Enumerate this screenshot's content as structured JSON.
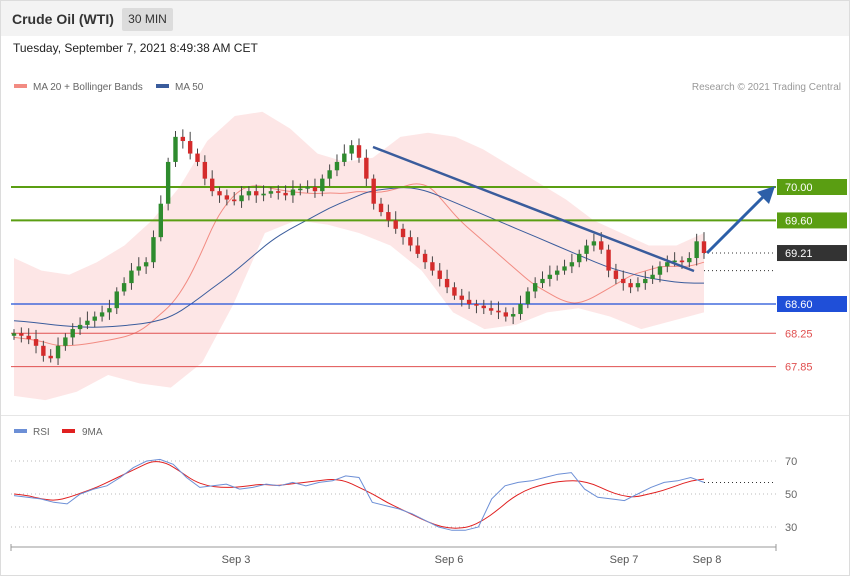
{
  "header": {
    "title": "Crude Oil (WTI)",
    "timeframe": "30 MIN",
    "timestamp": "Tuesday, September 7, 2021 8:49:38 AM CET"
  },
  "legend": {
    "ma20_label": "MA 20 + Bollinger Bands",
    "ma50_label": "MA 50",
    "ma20_color": "#f28b82",
    "ma50_color": "#3a5c9c",
    "credit": "Research © 2021 Trading Central"
  },
  "rsi_legend": {
    "rsi_label": "RSI",
    "ma_label": "9MA",
    "rsi_color": "#6c8fd6",
    "ma_color": "#e02020"
  },
  "chart_data": [
    {
      "type": "candlestick",
      "title": "Crude Oil (WTI)",
      "timeframe": "30 MIN",
      "x_ticks": [
        "Sep 3",
        "Sep 6",
        "Sep 7",
        "Sep 8"
      ],
      "ylim": [
        67.35,
        70.95
      ],
      "levels": [
        {
          "value": 70.0,
          "label": "70.00",
          "kind": "resistance",
          "color": "#5a9e12"
        },
        {
          "value": 69.6,
          "label": "69.60",
          "kind": "resistance",
          "color": "#5a9e12"
        },
        {
          "value": 69.21,
          "label": "69.21",
          "kind": "last",
          "color": "#333333"
        },
        {
          "value": 68.6,
          "label": "68.60",
          "kind": "support",
          "color": "#1f4fd8"
        },
        {
          "value": 68.25,
          "label": "68.25",
          "kind": "support",
          "color": "#e05050"
        },
        {
          "value": 67.85,
          "label": "67.85",
          "kind": "support",
          "color": "#e05050"
        }
      ],
      "close_path": [
        68.25,
        68.22,
        68.18,
        68.1,
        67.98,
        67.95,
        68.1,
        68.2,
        68.3,
        68.35,
        68.4,
        68.45,
        68.5,
        68.55,
        68.75,
        68.85,
        69.0,
        69.05,
        69.1,
        69.4,
        69.8,
        70.3,
        70.6,
        70.55,
        70.4,
        70.3,
        70.1,
        69.95,
        69.9,
        69.85,
        69.83,
        69.9,
        69.95,
        69.9,
        69.92,
        69.95,
        69.93,
        69.9,
        69.97,
        69.98,
        70.0,
        69.95,
        70.1,
        70.2,
        70.3,
        70.4,
        70.5,
        70.35,
        70.1,
        69.8,
        69.7,
        69.6,
        69.5,
        69.4,
        69.3,
        69.2,
        69.1,
        69.0,
        68.9,
        68.8,
        68.7,
        68.65,
        68.6,
        68.58,
        68.55,
        68.52,
        68.5,
        68.45,
        68.48,
        68.6,
        68.75,
        68.85,
        68.9,
        68.95,
        69.0,
        69.05,
        69.1,
        69.2,
        69.3,
        69.35,
        69.25,
        69.0,
        68.9,
        68.85,
        68.8,
        68.85,
        68.9,
        68.95,
        69.05,
        69.1,
        69.12,
        69.1,
        69.15,
        69.35,
        69.21
      ],
      "ma20_path": [
        68.2,
        68.18,
        68.15,
        68.1,
        68.1,
        68.12,
        68.15,
        68.18,
        68.22,
        68.3,
        68.45,
        68.6,
        68.85,
        69.2,
        69.6,
        69.85,
        70.0,
        70.02,
        69.98,
        69.95,
        69.93,
        69.92,
        69.93,
        69.92,
        69.95,
        69.93,
        69.95,
        70.0,
        70.05,
        70.0,
        69.8,
        69.6,
        69.45,
        69.3,
        69.15,
        69.0,
        68.85,
        68.75,
        68.65,
        68.6,
        68.65,
        68.75,
        68.85,
        68.95,
        69.0,
        69.05,
        69.05,
        69.05,
        69.1
      ],
      "ma50_path": [
        68.4,
        68.38,
        68.35,
        68.33,
        68.32,
        68.33,
        68.35,
        68.38,
        68.45,
        68.6,
        68.78,
        68.95,
        69.15,
        69.35,
        69.5,
        69.62,
        69.75,
        69.85,
        69.95,
        69.98,
        70.0,
        69.95,
        69.85,
        69.75,
        69.65,
        69.55,
        69.45,
        69.35,
        69.25,
        69.15,
        69.05,
        68.98,
        68.92,
        68.88,
        68.85,
        68.85
      ],
      "bb_upper_path": [
        69.15,
        69.0,
        68.95,
        69.1,
        69.3,
        69.6,
        70.0,
        70.55,
        70.85,
        70.9,
        70.7,
        70.4,
        70.3,
        70.35,
        70.6,
        70.65,
        70.6,
        70.45,
        70.25,
        70.05,
        69.85,
        69.6,
        69.45,
        69.3,
        69.3,
        69.45
      ],
      "bb_lower_path": [
        67.5,
        67.45,
        67.55,
        67.75,
        67.65,
        67.6,
        67.9,
        68.6,
        69.45,
        69.6,
        69.55,
        69.45,
        69.3,
        69.0,
        68.5,
        68.3,
        68.35,
        68.5,
        68.55,
        68.45,
        68.3,
        68.4,
        68.5
      ],
      "rsi": {
        "ylim": [
          20,
          80
        ],
        "ticks": [
          30,
          50,
          70
        ],
        "rsi_path": [
          49,
          48,
          47,
          45,
          44,
          50,
          53,
          55,
          60,
          66,
          70,
          71,
          68,
          60,
          54,
          55,
          56,
          53,
          54,
          56,
          55,
          57,
          55,
          57,
          58,
          61,
          60,
          45,
          43,
          41,
          38,
          34,
          30,
          28,
          28,
          30,
          47,
          55,
          57,
          58,
          60,
          62,
          63,
          53,
          48,
          47,
          46,
          50,
          54,
          57,
          58,
          60,
          57
        ],
        "ma9_path": [
          50,
          49,
          47,
          46,
          48,
          51,
          54,
          58,
          62,
          66,
          70,
          69,
          64,
          58,
          55,
          54,
          54,
          55,
          56,
          55,
          56,
          57,
          58,
          59,
          58,
          54,
          50,
          45,
          41,
          37,
          33,
          30,
          29,
          30,
          34,
          40,
          47,
          52,
          55,
          57,
          58,
          58,
          56,
          52,
          49,
          48,
          50,
          52,
          55,
          58,
          59
        ]
      }
    }
  ]
}
